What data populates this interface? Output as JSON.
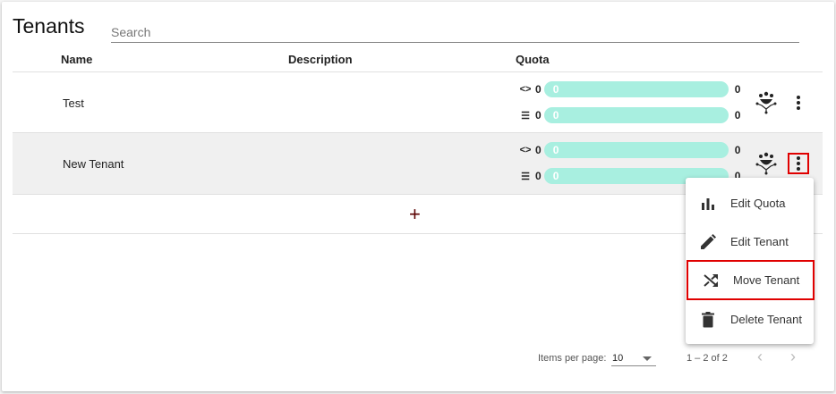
{
  "title": "Tenants",
  "search": {
    "placeholder": "Search",
    "value": ""
  },
  "columns": [
    "Name",
    "Description",
    "Quota"
  ],
  "rows": [
    {
      "name": "Test",
      "description": "",
      "quota": [
        {
          "icon": "code-icon",
          "used": "0",
          "bar": "0",
          "max": "0",
          "fill": 0
        },
        {
          "icon": "storage-list-icon",
          "used": "0",
          "bar": "0",
          "max": "0",
          "fill": 0
        }
      ]
    },
    {
      "name": "New Tenant",
      "description": "",
      "quota": [
        {
          "icon": "code-icon",
          "used": "0",
          "bar": "0",
          "max": "0",
          "fill": 0
        },
        {
          "icon": "storage-list-icon",
          "used": "0",
          "bar": "0",
          "max": "0",
          "fill": 0
        }
      ]
    }
  ],
  "add_label": "+",
  "menu": {
    "items": [
      {
        "label": "Edit Quota",
        "icon": "bar-chart-icon"
      },
      {
        "label": "Edit Tenant",
        "icon": "pencil-icon"
      },
      {
        "label": "Move Tenant",
        "icon": "shuffle-icon"
      },
      {
        "label": "Delete Tenant",
        "icon": "trash-icon"
      }
    ]
  },
  "paginator": {
    "items_per_page_label": "Items per page:",
    "page_size": "10",
    "range": "1 – 2 of 2"
  },
  "colors": {
    "bar": "#a8efe0",
    "highlight": "#e00000",
    "row_hover": "#f0f0f0"
  }
}
